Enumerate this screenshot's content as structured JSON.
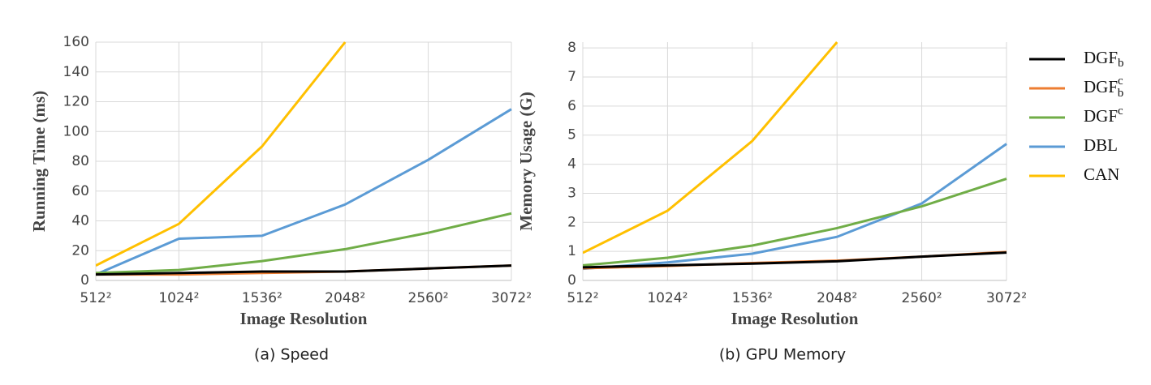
{
  "chart_data": [
    {
      "type": "line",
      "caption": "(a) Speed",
      "x_label": "Image Resolution",
      "y_label": "Running Time (ms)",
      "categories": [
        "512²",
        "1024²",
        "1536²",
        "2048²",
        "2560²",
        "3072²"
      ],
      "ylim": [
        0,
        160
      ],
      "yticks": [
        0,
        20,
        40,
        60,
        80,
        100,
        120,
        140,
        160
      ],
      "grid": true,
      "series": [
        {
          "name": "DGF_b",
          "color": "#000000",
          "values": [
            4,
            5,
            6,
            6,
            8,
            10
          ]
        },
        {
          "name": "DGF_b^c",
          "color": "#ed7d31",
          "values": [
            4,
            4,
            5,
            6,
            8,
            10
          ]
        },
        {
          "name": "DGF^c",
          "color": "#70ad47",
          "values": [
            5,
            7,
            13,
            21,
            32,
            45
          ]
        },
        {
          "name": "DBL",
          "color": "#5b9bd5",
          "values": [
            4,
            28,
            30,
            51,
            81,
            115
          ]
        },
        {
          "name": "CAN",
          "color": "#ffc000",
          "values": [
            10,
            38,
            90,
            160,
            null,
            null
          ]
        }
      ]
    },
    {
      "type": "line",
      "caption": "(b) GPU Memory",
      "x_label": "Image Resolution",
      "y_label": "Memory Usage (G)",
      "categories": [
        "512²",
        "1024²",
        "1536²",
        "2048²",
        "2560²",
        "3072²"
      ],
      "ylim": [
        0,
        8.2
      ],
      "yticks": [
        0,
        1,
        2,
        3,
        4,
        5,
        6,
        7,
        8
      ],
      "grid": true,
      "series": [
        {
          "name": "DGF_b",
          "color": "#000000",
          "values": [
            0.45,
            0.52,
            0.58,
            0.66,
            0.82,
            0.96
          ]
        },
        {
          "name": "DGF_b^c",
          "color": "#ed7d31",
          "values": [
            0.42,
            0.5,
            0.6,
            0.68,
            0.82,
            0.98
          ]
        },
        {
          "name": "DGF^c",
          "color": "#70ad47",
          "values": [
            0.52,
            0.78,
            1.2,
            1.8,
            2.55,
            3.5
          ]
        },
        {
          "name": "DBL",
          "color": "#5b9bd5",
          "values": [
            0.4,
            0.62,
            0.92,
            1.5,
            2.65,
            4.7
          ]
        },
        {
          "name": "CAN",
          "color": "#ffc000",
          "values": [
            0.95,
            2.4,
            4.8,
            8.2,
            null,
            null
          ]
        }
      ]
    }
  ]
}
